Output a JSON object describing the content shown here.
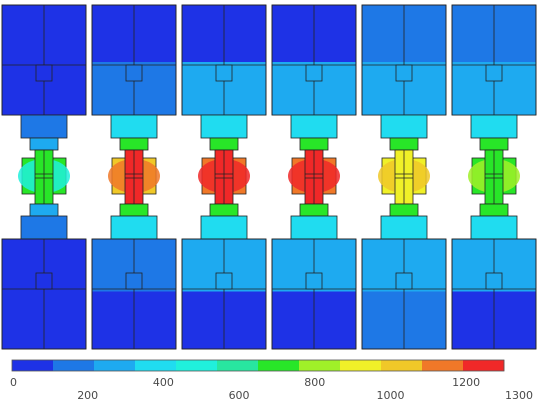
{
  "colorbar": {
    "colors": [
      "#1e32e6",
      "#1e78e6",
      "#1eaaf0",
      "#20dcf0",
      "#20f0dc",
      "#28e6a0",
      "#28e628",
      "#a0f028",
      "#f0f028",
      "#f0c828",
      "#f07828",
      "#f02828"
    ],
    "ticks": [
      {
        "label": "0",
        "value": 0,
        "row": "top"
      },
      {
        "label": "200",
        "value": 200,
        "row": "bottom"
      },
      {
        "label": "400",
        "value": 400,
        "row": "top"
      },
      {
        "label": "600",
        "value": 600,
        "row": "bottom"
      },
      {
        "label": "800",
        "value": 800,
        "row": "top"
      },
      {
        "label": "1000",
        "value": 1000,
        "row": "bottom"
      },
      {
        "label": "1200",
        "value": 1200,
        "row": "top"
      },
      {
        "label": "1300",
        "value": 1300,
        "row": "bottom"
      }
    ],
    "min": 0,
    "max": 1300
  },
  "panels": [
    {
      "name": "panel-1",
      "top_block": "#1e32e6",
      "top_band": "#1e32e6",
      "upper_collar": "#1e78e6",
      "upper_neck": "#1eaaf0",
      "core": "#28e628",
      "core_side": "#28e628",
      "core_ring": "#20f0dc",
      "lower_neck": "#1eaaf0",
      "lower_collar": "#1e78e6",
      "bottom_band": "#1e32e6",
      "bottom_block": "#1e32e6"
    },
    {
      "name": "panel-2",
      "top_block": "#1e32e6",
      "top_band": "#1e78e6",
      "upper_collar": "#20dcf0",
      "upper_neck": "#28e628",
      "core": "#f02828",
      "core_side": "#f0c828",
      "core_ring": "#f07828",
      "lower_neck": "#28e628",
      "lower_collar": "#20dcf0",
      "bottom_band": "#1e78e6",
      "bottom_block": "#1e32e6"
    },
    {
      "name": "panel-3",
      "top_block": "#1e32e6",
      "top_band": "#1eaaf0",
      "upper_collar": "#20dcf0",
      "upper_neck": "#28e628",
      "core": "#f02828",
      "core_side": "#f07828",
      "core_ring": "#f02828",
      "lower_neck": "#28e628",
      "lower_collar": "#20dcf0",
      "bottom_band": "#1eaaf0",
      "bottom_block": "#1e32e6"
    },
    {
      "name": "panel-4",
      "top_block": "#1e32e6",
      "top_band": "#1eaaf0",
      "upper_collar": "#20dcf0",
      "upper_neck": "#28e628",
      "core": "#f02828",
      "core_side": "#f07828",
      "core_ring": "#f02828",
      "lower_neck": "#28e628",
      "lower_collar": "#20dcf0",
      "bottom_band": "#1eaaf0",
      "bottom_block": "#1e32e6"
    },
    {
      "name": "panel-5",
      "top_block": "#1e78e6",
      "top_band": "#1eaaf0",
      "upper_collar": "#20dcf0",
      "upper_neck": "#28e628",
      "core": "#f0f028",
      "core_side": "#f0f028",
      "core_ring": "#f0c828",
      "lower_neck": "#28e628",
      "lower_collar": "#20dcf0",
      "bottom_band": "#1eaaf0",
      "bottom_block": "#1e78e6"
    },
    {
      "name": "panel-6",
      "top_block": "#1e78e6",
      "top_band": "#1eaaf0",
      "upper_collar": "#20dcf0",
      "upper_neck": "#28e628",
      "core": "#28e628",
      "core_side": "#28e628",
      "core_ring": "#a0f028",
      "lower_neck": "#28e628",
      "lower_collar": "#20dcf0",
      "bottom_band": "#1eaaf0",
      "bottom_block": "#1e32e6"
    }
  ]
}
